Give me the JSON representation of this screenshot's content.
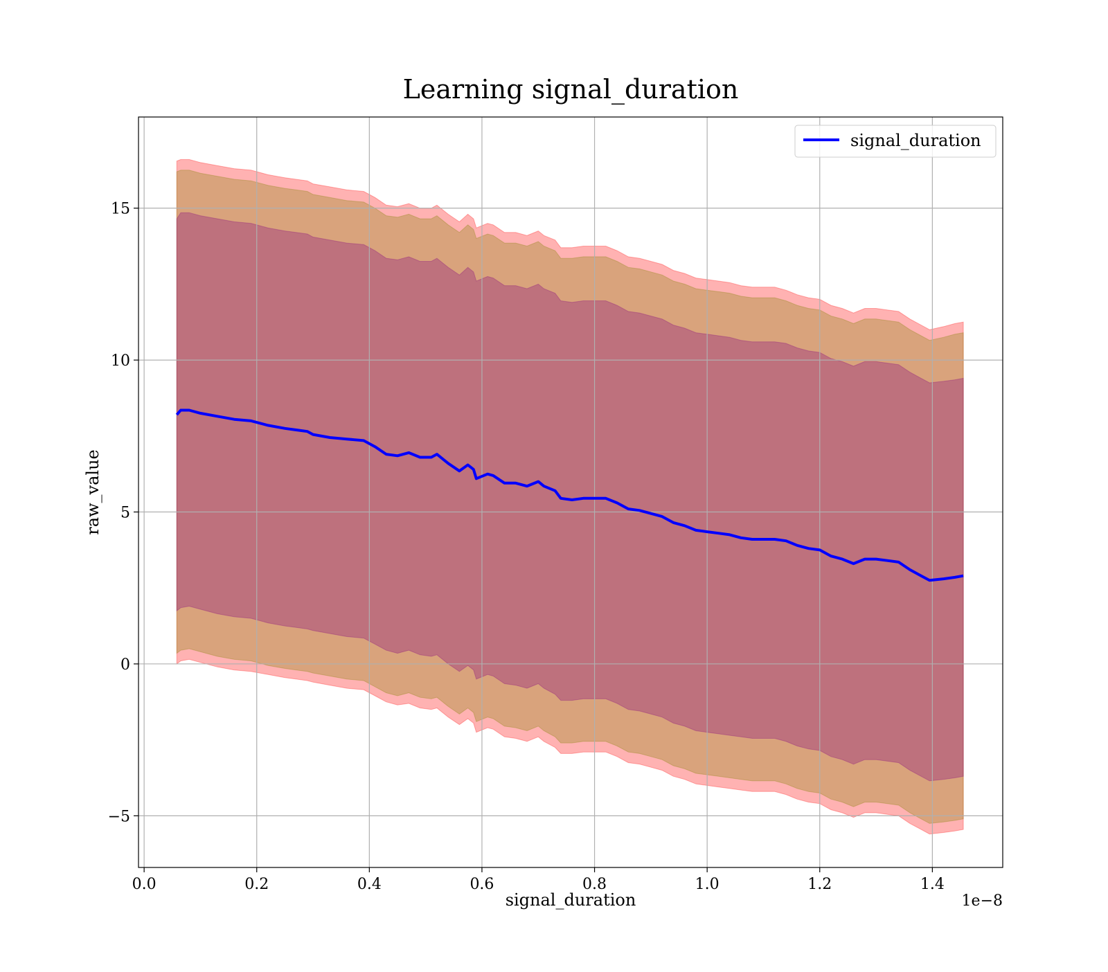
{
  "chart_data": {
    "type": "line",
    "title": "Learning signal_duration",
    "xlabel": "signal_duration",
    "ylabel": "raw_value",
    "x_offset_text": "1e−8",
    "xlim": [
      -0.01,
      1.525
    ],
    "ylim": [
      -6.7,
      18.0
    ],
    "x_ticks": [
      0.0,
      0.2,
      0.4,
      0.6,
      0.8,
      1.0,
      1.2,
      1.4
    ],
    "x_tick_labels": [
      "0.0",
      "0.2",
      "0.4",
      "0.6",
      "0.8",
      "1.0",
      "1.2",
      "1.4"
    ],
    "y_ticks": [
      -5,
      0,
      5,
      10,
      15
    ],
    "y_tick_labels": [
      "−5",
      "0",
      "5",
      "10",
      "15"
    ],
    "grid": true,
    "legend_position": "top-right",
    "series": [
      {
        "name": "signal_duration",
        "color": "#0000ff",
        "x": [
          0.058,
          0.065,
          0.08,
          0.1,
          0.13,
          0.16,
          0.19,
          0.22,
          0.25,
          0.27,
          0.29,
          0.3,
          0.33,
          0.36,
          0.39,
          0.41,
          0.43,
          0.45,
          0.47,
          0.49,
          0.51,
          0.52,
          0.54,
          0.56,
          0.575,
          0.585,
          0.59,
          0.61,
          0.62,
          0.64,
          0.66,
          0.68,
          0.7,
          0.71,
          0.73,
          0.74,
          0.76,
          0.78,
          0.8,
          0.82,
          0.84,
          0.86,
          0.88,
          0.9,
          0.92,
          0.94,
          0.96,
          0.98,
          1.0,
          1.02,
          1.04,
          1.06,
          1.08,
          1.1,
          1.12,
          1.14,
          1.16,
          1.18,
          1.2,
          1.22,
          1.24,
          1.26,
          1.28,
          1.3,
          1.32,
          1.34,
          1.36,
          1.38,
          1.395,
          1.42,
          1.44,
          1.455
        ],
        "y": [
          8.2,
          8.35,
          8.35,
          8.25,
          8.15,
          8.05,
          8.0,
          7.85,
          7.75,
          7.7,
          7.65,
          7.55,
          7.45,
          7.4,
          7.35,
          7.15,
          6.9,
          6.85,
          6.95,
          6.8,
          6.8,
          6.9,
          6.6,
          6.35,
          6.55,
          6.4,
          6.1,
          6.25,
          6.2,
          5.95,
          5.95,
          5.85,
          6.0,
          5.85,
          5.7,
          5.45,
          5.4,
          5.45,
          5.45,
          5.45,
          5.3,
          5.1,
          5.05,
          4.95,
          4.85,
          4.65,
          4.55,
          4.4,
          4.35,
          4.3,
          4.25,
          4.15,
          4.1,
          4.1,
          4.1,
          4.05,
          3.9,
          3.8,
          3.75,
          3.55,
          3.45,
          3.3,
          3.45,
          3.45,
          3.4,
          3.35,
          3.1,
          2.9,
          2.75,
          2.8,
          2.85,
          2.9
        ]
      }
    ],
    "bands": [
      {
        "color": "#ff0000",
        "opacity": 0.3,
        "lower": [
          0.0,
          0.1,
          0.15,
          0.05,
          -0.1,
          -0.2,
          -0.25,
          -0.35,
          -0.45,
          -0.5,
          -0.55,
          -0.6,
          -0.7,
          -0.8,
          -0.85,
          -1.05,
          -1.25,
          -1.35,
          -1.3,
          -1.45,
          -1.5,
          -1.45,
          -1.75,
          -2.0,
          -1.8,
          -1.95,
          -2.25,
          -2.1,
          -2.15,
          -2.4,
          -2.45,
          -2.55,
          -2.4,
          -2.55,
          -2.75,
          -2.95,
          -2.95,
          -2.9,
          -2.9,
          -2.9,
          -3.05,
          -3.25,
          -3.3,
          -3.4,
          -3.5,
          -3.7,
          -3.8,
          -3.95,
          -4.0,
          -4.05,
          -4.1,
          -4.15,
          -4.2,
          -4.2,
          -4.2,
          -4.3,
          -4.45,
          -4.55,
          -4.6,
          -4.8,
          -4.9,
          -5.05,
          -4.9,
          -4.9,
          -4.95,
          -5.0,
          -5.25,
          -5.45,
          -5.6,
          -5.55,
          -5.5,
          -5.45
        ],
        "upper": [
          16.55,
          16.6,
          16.6,
          16.5,
          16.4,
          16.3,
          16.25,
          16.1,
          16.0,
          15.95,
          15.9,
          15.8,
          15.7,
          15.6,
          15.55,
          15.35,
          15.1,
          15.05,
          15.15,
          15.0,
          15.0,
          15.1,
          14.8,
          14.55,
          14.8,
          14.65,
          14.35,
          14.5,
          14.45,
          14.2,
          14.2,
          14.1,
          14.25,
          14.1,
          13.95,
          13.7,
          13.7,
          13.75,
          13.75,
          13.75,
          13.6,
          13.4,
          13.35,
          13.25,
          13.15,
          12.95,
          12.85,
          12.7,
          12.65,
          12.6,
          12.55,
          12.45,
          12.4,
          12.4,
          12.4,
          12.3,
          12.15,
          12.05,
          12.0,
          11.8,
          11.7,
          11.55,
          11.7,
          11.7,
          11.65,
          11.6,
          11.35,
          11.15,
          11.0,
          11.1,
          11.2,
          11.25
        ]
      },
      {
        "color": "#808000",
        "opacity": 0.3,
        "lower": [
          0.35,
          0.45,
          0.5,
          0.4,
          0.25,
          0.15,
          0.1,
          -0.05,
          -0.15,
          -0.2,
          -0.25,
          -0.3,
          -0.4,
          -0.5,
          -0.55,
          -0.75,
          -0.95,
          -1.05,
          -0.95,
          -1.1,
          -1.15,
          -1.1,
          -1.4,
          -1.65,
          -1.45,
          -1.6,
          -1.9,
          -1.75,
          -1.8,
          -2.05,
          -2.1,
          -2.2,
          -2.05,
          -2.2,
          -2.4,
          -2.6,
          -2.6,
          -2.55,
          -2.55,
          -2.55,
          -2.7,
          -2.9,
          -2.95,
          -3.05,
          -3.15,
          -3.35,
          -3.45,
          -3.6,
          -3.65,
          -3.7,
          -3.75,
          -3.8,
          -3.85,
          -3.85,
          -3.85,
          -3.95,
          -4.1,
          -4.2,
          -4.25,
          -4.45,
          -4.55,
          -4.7,
          -4.55,
          -4.55,
          -4.6,
          -4.65,
          -4.9,
          -5.1,
          -5.25,
          -5.2,
          -5.15,
          -5.1
        ],
        "upper": [
          16.2,
          16.25,
          16.25,
          16.15,
          16.05,
          15.95,
          15.9,
          15.75,
          15.65,
          15.6,
          15.55,
          15.45,
          15.35,
          15.25,
          15.2,
          15.0,
          14.75,
          14.7,
          14.8,
          14.65,
          14.65,
          14.75,
          14.45,
          14.2,
          14.45,
          14.3,
          14.0,
          14.15,
          14.1,
          13.85,
          13.85,
          13.75,
          13.9,
          13.75,
          13.6,
          13.35,
          13.35,
          13.4,
          13.4,
          13.4,
          13.25,
          13.05,
          13.0,
          12.9,
          12.8,
          12.6,
          12.5,
          12.35,
          12.3,
          12.25,
          12.2,
          12.1,
          12.05,
          12.05,
          12.05,
          11.95,
          11.8,
          11.7,
          11.65,
          11.45,
          11.35,
          11.2,
          11.35,
          11.35,
          11.3,
          11.25,
          11.0,
          10.8,
          10.65,
          10.75,
          10.85,
          10.9
        ]
      },
      {
        "color": "#800080",
        "opacity": 0.3,
        "lower": [
          1.75,
          1.85,
          1.9,
          1.8,
          1.65,
          1.55,
          1.5,
          1.35,
          1.25,
          1.2,
          1.15,
          1.1,
          1.0,
          0.9,
          0.85,
          0.65,
          0.45,
          0.35,
          0.45,
          0.3,
          0.25,
          0.3,
          0.0,
          -0.25,
          -0.05,
          -0.2,
          -0.5,
          -0.35,
          -0.4,
          -0.65,
          -0.7,
          -0.8,
          -0.65,
          -0.8,
          -1.0,
          -1.2,
          -1.2,
          -1.15,
          -1.15,
          -1.15,
          -1.3,
          -1.5,
          -1.55,
          -1.65,
          -1.75,
          -1.95,
          -2.05,
          -2.2,
          -2.25,
          -2.3,
          -2.35,
          -2.4,
          -2.45,
          -2.45,
          -2.45,
          -2.55,
          -2.7,
          -2.8,
          -2.85,
          -3.05,
          -3.15,
          -3.3,
          -3.15,
          -3.15,
          -3.2,
          -3.25,
          -3.5,
          -3.7,
          -3.85,
          -3.8,
          -3.75,
          -3.7
        ],
        "upper": [
          14.65,
          14.85,
          14.85,
          14.75,
          14.65,
          14.55,
          14.5,
          14.35,
          14.25,
          14.2,
          14.15,
          14.05,
          13.95,
          13.85,
          13.8,
          13.6,
          13.35,
          13.3,
          13.4,
          13.25,
          13.25,
          13.35,
          13.05,
          12.8,
          13.05,
          12.9,
          12.6,
          12.75,
          12.7,
          12.45,
          12.45,
          12.35,
          12.5,
          12.35,
          12.2,
          11.95,
          11.9,
          11.95,
          11.95,
          11.95,
          11.8,
          11.6,
          11.55,
          11.45,
          11.35,
          11.15,
          11.05,
          10.9,
          10.85,
          10.8,
          10.75,
          10.65,
          10.6,
          10.6,
          10.6,
          10.55,
          10.4,
          10.3,
          10.25,
          10.05,
          9.95,
          9.8,
          9.95,
          9.95,
          9.9,
          9.85,
          9.6,
          9.4,
          9.25,
          9.3,
          9.35,
          9.4
        ]
      }
    ]
  }
}
